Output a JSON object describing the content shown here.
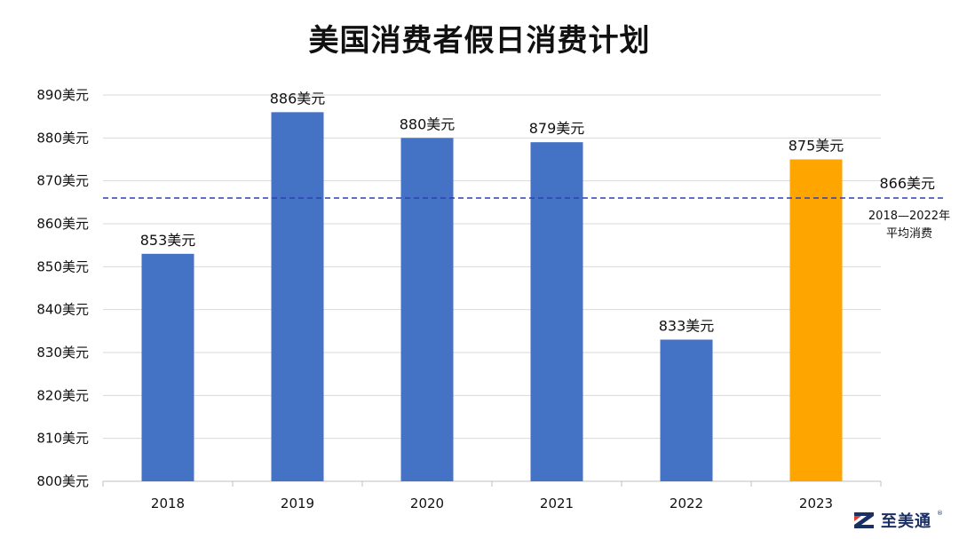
{
  "chart_data": {
    "type": "bar",
    "title": "美国消费者假日消费计划",
    "categories": [
      "2018",
      "2019",
      "2020",
      "2021",
      "2022",
      "2023"
    ],
    "values": [
      853,
      886,
      880,
      879,
      833,
      875
    ],
    "value_labels": [
      "853美元",
      "886美元",
      "880美元",
      "879美元",
      "833美元",
      "875美元"
    ],
    "ylim": [
      800,
      890
    ],
    "yticks": [
      800,
      810,
      820,
      830,
      840,
      850,
      860,
      870,
      880,
      890
    ],
    "ytick_labels": [
      "800美元",
      "810美元",
      "820美元",
      "830美元",
      "840美元",
      "850美元",
      "860美元",
      "870美元",
      "880美元",
      "890美元"
    ],
    "grid": true,
    "bar_colors": [
      "#4472C4",
      "#4472C4",
      "#4472C4",
      "#4472C4",
      "#4472C4",
      "#FFA500"
    ],
    "reference_line": {
      "value": 866,
      "label": "866美元",
      "note_line1": "2018—2022年",
      "note_line2": "平均消费",
      "color": "#2E3FB3",
      "style": "dashed"
    }
  },
  "brand": {
    "name": "至美通",
    "mark": "reg",
    "color": "#1a2f63"
  }
}
